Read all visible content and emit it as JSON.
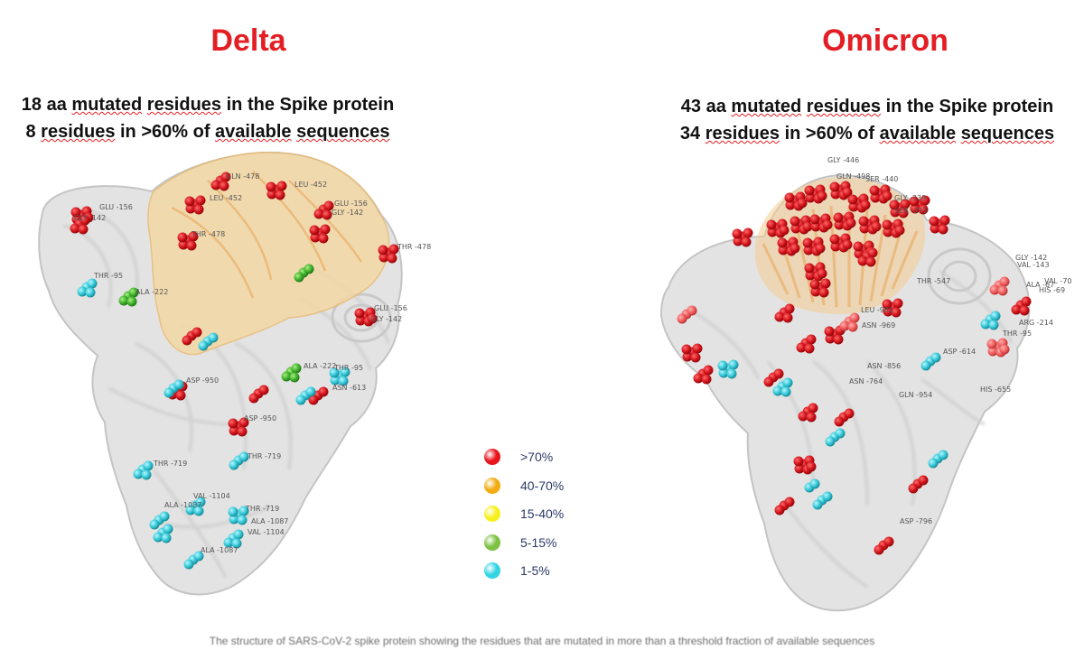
{
  "delta": {
    "title": "Delta",
    "line1": {
      "count": "18 aa",
      "mutated": "mutated",
      "residues": "residues",
      "rest": "in the Spike protein"
    },
    "line2": {
      "count": "8",
      "residues": "residues",
      "mid": "in >60% of",
      "available": "available",
      "sequences": "sequences"
    },
    "residue_labels": [
      "GLN -478",
      "GLU -156",
      "LEU -452",
      "GLU -156",
      "GLY -142",
      "GLY -142",
      "LEU -452",
      "THR -478",
      "THR -478",
      "THR -95",
      "ALA -222",
      "GLU -156",
      "GLY -142",
      "ASP -950",
      "ALA -222",
      "THR -95",
      "ASN -613",
      "ASP -950",
      "THR -719",
      "THR -719",
      "VAL -1104",
      "ALA -1087",
      "THR -719",
      "ALA -1087",
      "VAL -1104",
      "ALA -1087"
    ]
  },
  "omicron": {
    "title": "Omicron",
    "line1": {
      "count": "43 aa",
      "mutated": "mutated",
      "residues": "residues",
      "rest": "in the Spike protein"
    },
    "line2": {
      "count": "34",
      "residues": "residues",
      "mid": "in >60% of",
      "available": "available",
      "sequences": "sequences"
    },
    "residue_labels": [
      "GLY -446",
      "GLN -498",
      "SER -440",
      "GLY -339",
      "SER -373",
      "THR -547",
      "GLY -142",
      "VAL -143",
      "VAL -70",
      "ALA -67",
      "HIS -69",
      "THR -95",
      "LEU -981",
      "ASN -969",
      "ARG -214",
      "ASP -614",
      "ASN -856",
      "GLN -954",
      "HIS -655",
      "ASN -764",
      "ASP -796"
    ]
  },
  "legend": [
    {
      "label": ">70%",
      "color": "#e8141b"
    },
    {
      "label": "40-70%",
      "color": "#f2ac12"
    },
    {
      "label": "15-40%",
      "color": "#f7f01f"
    },
    {
      "label": "5-15%",
      "color": "#7dc242"
    },
    {
      "label": "1-5%",
      "color": "#35d4e4"
    }
  ],
  "caption": "The structure of SARS-CoV-2 spike protein showing the residues that are mutated in more than a threshold fraction of available sequences"
}
